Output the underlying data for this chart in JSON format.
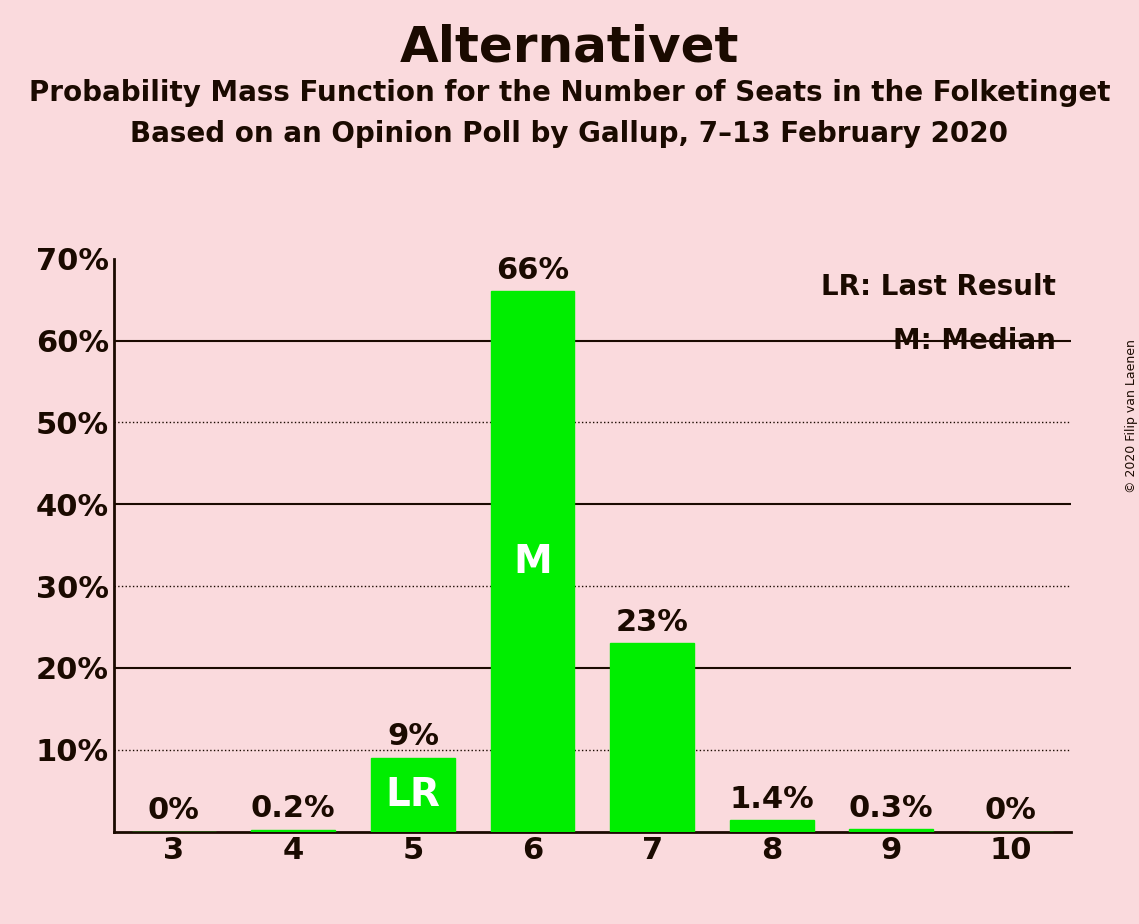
{
  "title": "Alternativet",
  "subtitle1": "Probability Mass Function for the Number of Seats in the Folketinget",
  "subtitle2": "Based on an Opinion Poll by Gallup, 7–13 February 2020",
  "copyright": "© 2020 Filip van Laenen",
  "categories": [
    3,
    4,
    5,
    6,
    7,
    8,
    9,
    10
  ],
  "values": [
    0.0,
    0.2,
    9.0,
    66.0,
    23.0,
    1.4,
    0.3,
    0.0
  ],
  "bar_color": "#00ee00",
  "bar_labels": [
    "0%",
    "0.2%",
    "9%",
    "66%",
    "23%",
    "1.4%",
    "0.3%",
    "0%"
  ],
  "background_color": "#fadadd",
  "text_color": "#1a0a00",
  "lr_index": 2,
  "median_index": 3,
  "lr_label": "LR",
  "median_label": "M",
  "legend_lr": "LR: Last Result",
  "legend_m": "M: Median",
  "ylim": [
    0,
    70
  ],
  "yticks": [
    0,
    10,
    20,
    30,
    40,
    50,
    60,
    70
  ],
  "ytick_labels": [
    "",
    "10%",
    "20%",
    "30%",
    "40%",
    "50%",
    "60%",
    "70%"
  ],
  "solid_gridlines": [
    20,
    40,
    60
  ],
  "dotted_gridlines": [
    10,
    30,
    50
  ],
  "title_fontsize": 36,
  "subtitle_fontsize": 20,
  "tick_fontsize": 22,
  "bar_label_fontsize": 22,
  "inside_label_fontsize": 28,
  "legend_fontsize": 20,
  "copyright_fontsize": 9
}
